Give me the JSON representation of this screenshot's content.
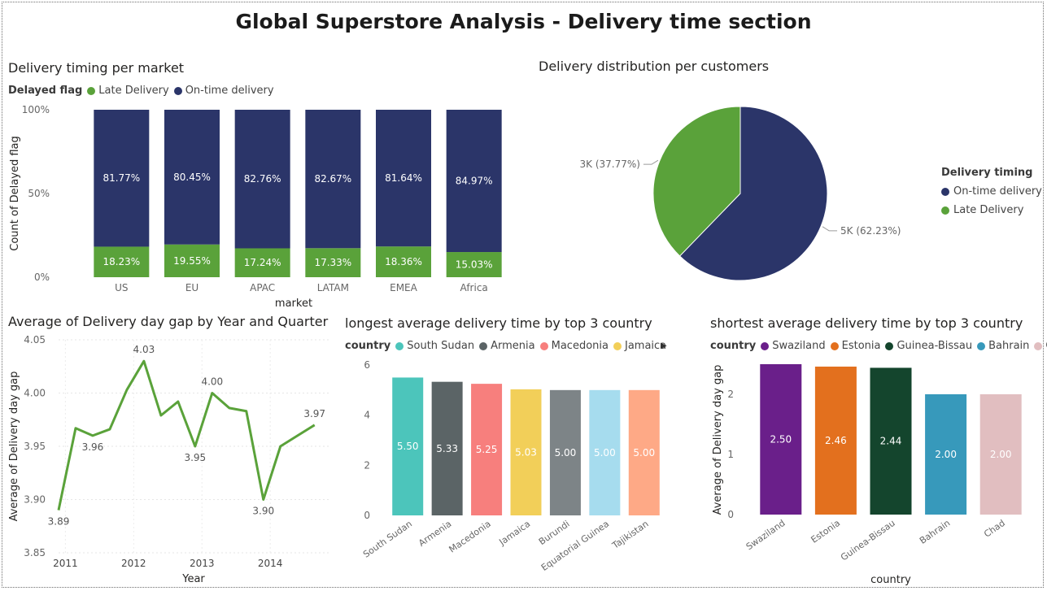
{
  "page": {
    "title": "Global Superstore Analysis - Delivery time section"
  },
  "visuals": {
    "stacked": {
      "title": "Delivery timing per market",
      "legend_title": "Delayed flag",
      "legend": [
        {
          "label": "Late Delivery",
          "color": "#5aa23a"
        },
        {
          "label": "On-time delivery",
          "color": "#2b3569"
        }
      ]
    },
    "pie": {
      "title": "Delivery distribution per customers",
      "legend_title": "Delivery timing",
      "legend": [
        {
          "label": "On-time delivery",
          "color": "#2b3569"
        },
        {
          "label": "Late Delivery",
          "color": "#5aa23a"
        }
      ]
    },
    "line": {
      "title": "Average of Delivery day gap by Year and Quarter"
    },
    "longest": {
      "title": "longest average delivery time by top 3 country",
      "legend_title": "country",
      "legend": [
        {
          "label": "South Sudan",
          "color": "#4cc5bb"
        },
        {
          "label": "Armenia",
          "color": "#5b6466"
        },
        {
          "label": "Macedonia",
          "color": "#f77f7d"
        },
        {
          "label": "Jamaica",
          "color": "#f2cf59"
        }
      ],
      "arrow": "▶"
    },
    "shortest": {
      "title": "shortest average delivery time by top 3 country",
      "legend_title": "country",
      "legend": [
        {
          "label": "Swaziland",
          "color": "#6a1f8a"
        },
        {
          "label": "Estonia",
          "color": "#e3701e"
        },
        {
          "label": "Guinea-Bissau",
          "color": "#14452d"
        },
        {
          "label": "Bahrain",
          "color": "#3799bb"
        },
        {
          "label": "Chad",
          "color": "#e1bec0"
        }
      ]
    }
  },
  "chart_data": [
    {
      "id": "stacked",
      "type": "bar",
      "stacked": "100%",
      "categories": [
        "US",
        "EU",
        "APAC",
        "LATAM",
        "EMEA",
        "Africa"
      ],
      "series": [
        {
          "name": "Late Delivery",
          "values": [
            18.23,
            19.55,
            17.24,
            17.33,
            18.36,
            15.03
          ],
          "labels": [
            "18.23%",
            "19.55%",
            "17.24%",
            "17.33%",
            "18.36%",
            "15.03%"
          ],
          "color": "#5aa23a"
        },
        {
          "name": "On-time delivery",
          "values": [
            81.77,
            80.45,
            82.76,
            82.67,
            81.64,
            84.97
          ],
          "labels": [
            "81.77%",
            "80.45%",
            "82.76%",
            "82.67%",
            "81.64%",
            "84.97%"
          ],
          "color": "#2b3569"
        }
      ],
      "xlabel": "market",
      "ylabel": "Count of Delayed flag",
      "yticks": [
        "0%",
        "50%",
        "100%"
      ],
      "ylim": [
        0,
        100
      ]
    },
    {
      "id": "pie",
      "type": "pie",
      "slices": [
        {
          "name": "On-time delivery",
          "value": 62.23,
          "label": "5K (62.23%)",
          "color": "#2b3569"
        },
        {
          "name": "Late Delivery",
          "value": 37.77,
          "label": "3K (37.77%)",
          "color": "#5aa23a"
        }
      ]
    },
    {
      "id": "line",
      "type": "line",
      "x": [
        2011.0,
        2011.25,
        2011.5,
        2011.75,
        2012.0,
        2012.25,
        2012.5,
        2012.75,
        2013.0,
        2013.25,
        2013.5,
        2013.75,
        2014.0,
        2014.25,
        2014.5,
        2014.75
      ],
      "y": [
        3.89,
        3.967,
        3.96,
        3.966,
        4.003,
        4.03,
        3.979,
        3.992,
        3.95,
        4.0,
        3.986,
        3.983,
        3.9,
        3.95,
        3.96,
        3.97
      ],
      "point_labels": [
        {
          "index": 0,
          "text": "3.89"
        },
        {
          "index": 2,
          "text": "3.96"
        },
        {
          "index": 5,
          "text": "4.03"
        },
        {
          "index": 8,
          "text": "3.95"
        },
        {
          "index": 9,
          "text": "4.00"
        },
        {
          "index": 12,
          "text": "3.90"
        },
        {
          "index": 15,
          "text": "3.97"
        }
      ],
      "color": "#5aa23a",
      "xlabel": "Year",
      "ylabel": "Average of Delivery day gap",
      "xticks": [
        "2011",
        "2012",
        "2013",
        "2014"
      ],
      "yticks": [
        "3.85",
        "3.90",
        "3.95",
        "4.00",
        "4.05"
      ],
      "ylim": [
        3.85,
        4.05
      ],
      "grid": true
    },
    {
      "id": "longest",
      "type": "bar",
      "categories": [
        "South Sudan",
        "Armenia",
        "Macedonia",
        "Jamaica",
        "Burundi",
        "Equatorial Guinea",
        "Tajikistan"
      ],
      "values": [
        5.5,
        5.33,
        5.25,
        5.03,
        5.0,
        5.0,
        5.0
      ],
      "labels": [
        "5.50",
        "5.33",
        "5.25",
        "5.03",
        "5.00",
        "5.00",
        "5.00"
      ],
      "colors": [
        "#4cc5bb",
        "#5b6466",
        "#f77f7d",
        "#f2cf59",
        "#7d8487",
        "#a6dcee",
        "#fea986"
      ],
      "yticks": [
        "0",
        "2",
        "4",
        "6"
      ],
      "ylim": [
        0,
        6
      ]
    },
    {
      "id": "shortest",
      "type": "bar",
      "categories": [
        "Swaziland",
        "Estonia",
        "Guinea-Bissau",
        "Bahrain",
        "Chad"
      ],
      "values": [
        2.5,
        2.46,
        2.44,
        2.0,
        2.0
      ],
      "labels": [
        "2.50",
        "2.46",
        "2.44",
        "2.00",
        "2.00"
      ],
      "colors": [
        "#6a1f8a",
        "#e3701e",
        "#14452d",
        "#3799bb",
        "#e1bec0"
      ],
      "xlabel": "country",
      "ylabel": "Average of Delivery day gap",
      "yticks": [
        "0",
        "1",
        "2"
      ],
      "ylim": [
        0,
        2.5
      ]
    }
  ]
}
